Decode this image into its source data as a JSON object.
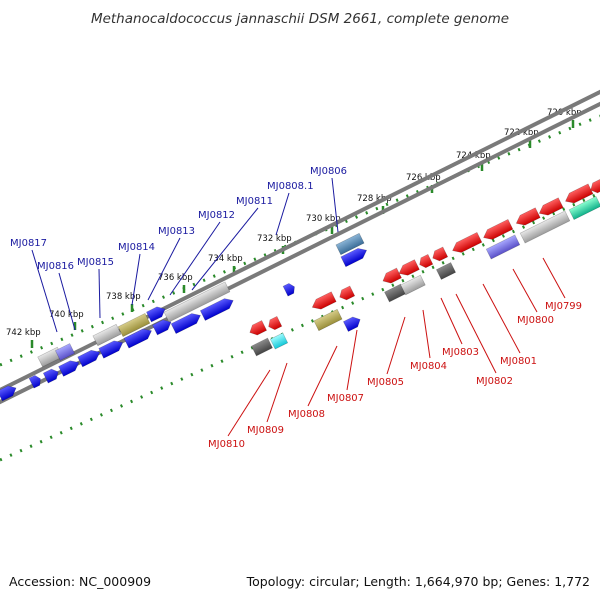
{
  "title": "Methanocaldococcus jannaschii DSM 2661, complete genome",
  "footer": {
    "accession": "Accession: NC_000909",
    "summary": "Topology: circular; Length: 1,664,970 bp; Genes: 1,772"
  },
  "scale_labels": [
    "720 kbp",
    "722 kbp",
    "724 kbp",
    "726 kbp",
    "728 kbp",
    "730 kbp",
    "732 kbp",
    "734 kbp",
    "736 kbp",
    "738 kbp",
    "740 kbp",
    "742 kbp"
  ],
  "genes_top": [
    "MJ0817",
    "MJ0816",
    "MJ0815",
    "MJ0814",
    "MJ0813",
    "MJ0812",
    "MJ0811",
    "MJ0808.1",
    "MJ0806"
  ],
  "genes_bottom": [
    "MJ0810",
    "MJ0809",
    "MJ0808",
    "MJ0807",
    "MJ0805",
    "MJ0804",
    "MJ0803",
    "MJ0802",
    "MJ0801",
    "MJ0800",
    "MJ0799"
  ],
  "colors": {
    "backbone": "#7a7a7a",
    "tick": "#2a8a2a",
    "forward_label": "#1a1aa0",
    "reverse_label": "#cc1111"
  }
}
